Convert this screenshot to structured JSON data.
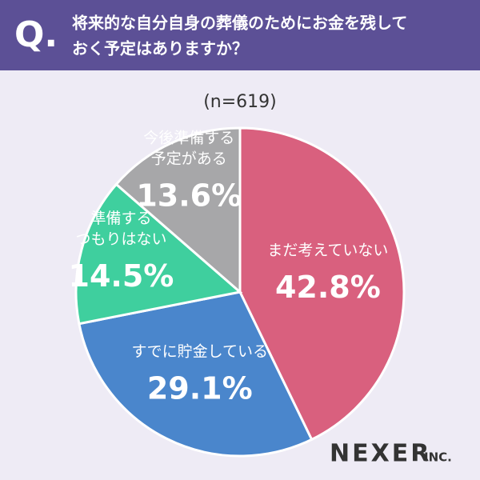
{
  "chart_data": {
    "type": "pie",
    "question_mark": "Q.",
    "title": [
      "将来的な自分自身の葬儀のためにお金を残して",
      "おく予定はありますか？"
    ],
    "subtitle": "(n=619)",
    "categories": [
      [
        "まだ考えていない"
      ],
      [
        "すでに貯金している"
      ],
      [
        "準備する",
        "つもりはない"
      ],
      [
        "今後準備する",
        "予定がある"
      ]
    ],
    "values": [
      42.8,
      29.1,
      14.5,
      13.6
    ],
    "value_labels": [
      "42.8%",
      "29.1%",
      "14.5%",
      "13.6%"
    ],
    "colors": [
      "#d9607e",
      "#4a86cc",
      "#3fcf9e",
      "#a7a7a9"
    ],
    "logo": {
      "name": "NEXER",
      "suffix": "INC."
    }
  }
}
